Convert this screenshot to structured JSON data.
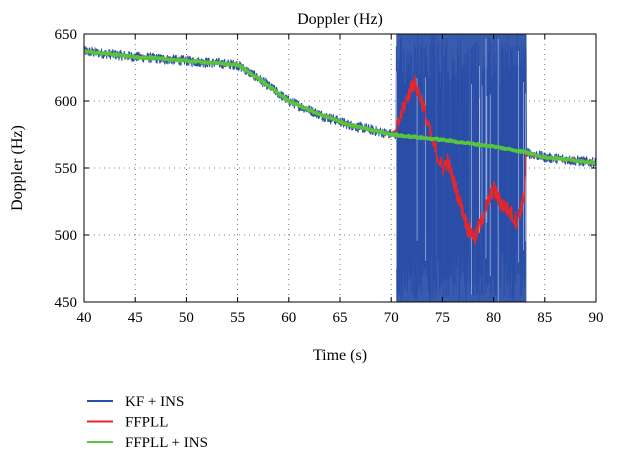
{
  "chart_data": {
    "type": "line",
    "title": "Doppler (Hz)",
    "xlabel": "Time (s)",
    "ylabel": "Doppler (Hz)",
    "xlim": [
      40,
      90
    ],
    "ylim": [
      450,
      650
    ],
    "xticks": [
      40,
      45,
      50,
      55,
      60,
      65,
      70,
      75,
      80,
      85,
      90
    ],
    "yticks": [
      450,
      500,
      550,
      600,
      650
    ],
    "grid": "dotted",
    "legend_placement": "below",
    "outage_interval": [
      70.5,
      83.2
    ],
    "series": [
      {
        "name": "KF + INS",
        "color": "#2a4fa8",
        "noise_hz": 4,
        "outage_range": [
          450,
          650
        ],
        "x": [
          40,
          45,
          50,
          55,
          57,
          60,
          63,
          66,
          70,
          75,
          80,
          83,
          85,
          90
        ],
        "y": [
          637,
          633,
          630,
          627,
          617,
          600,
          590,
          582,
          575,
          571,
          566,
          562,
          558,
          554
        ]
      },
      {
        "name": "FFPLL",
        "color": "#e8262a",
        "x": [
          40,
          45,
          50,
          55,
          57,
          60,
          63,
          66,
          70,
          70.5,
          71.2,
          72.2,
          73,
          74,
          75,
          75.5,
          76.5,
          77.5,
          78.2,
          79,
          80,
          80.6,
          81.5,
          82.3,
          83.0,
          83.2,
          85,
          90
        ],
        "y": [
          637,
          633,
          630,
          627,
          617,
          600,
          590,
          582,
          575,
          578,
          595,
          615,
          600,
          570,
          550,
          555,
          530,
          505,
          498,
          515,
          535,
          525,
          518,
          510,
          530,
          560,
          558,
          554
        ]
      },
      {
        "name": "FFPLL + INS",
        "color": "#56c43c",
        "x": [
          40,
          45,
          50,
          55,
          57,
          60,
          63,
          66,
          70,
          75,
          80,
          83,
          85,
          90
        ],
        "y": [
          637,
          633,
          630,
          627,
          617,
          600,
          590,
          582,
          575,
          571,
          566,
          562,
          558,
          554
        ]
      }
    ]
  }
}
